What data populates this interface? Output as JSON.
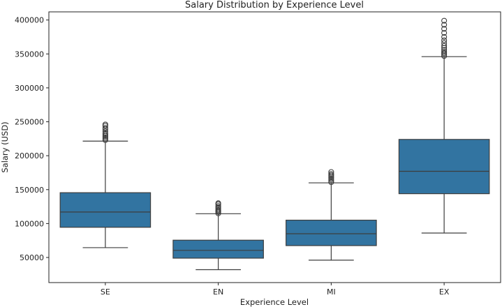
{
  "chart_data": {
    "type": "box",
    "title": "Salary Distribution by Experience Level",
    "xlabel": "Experience Level",
    "ylabel": "Salary (USD)",
    "ylim": [
      13000,
      412000
    ],
    "yticks": [
      50000,
      100000,
      150000,
      200000,
      250000,
      300000,
      350000,
      400000
    ],
    "grid": false,
    "box_color": "#3274a1",
    "line_color": "#3d3d3d",
    "categories": [
      "SE",
      "EN",
      "MI",
      "EX"
    ],
    "boxes": [
      {
        "label": "SE",
        "whisker_low": 64500,
        "q1": 94500,
        "median": 117000,
        "q3": 145500,
        "whisker_high": 221500,
        "outliers": [
          223000,
          225000,
          227000,
          229000,
          231000,
          233000,
          236000,
          239000,
          241000,
          244000,
          246000
        ]
      },
      {
        "label": "EN",
        "whisker_low": 32000,
        "q1": 49000,
        "median": 60500,
        "q3": 75500,
        "whisker_high": 114500,
        "outliers": [
          115000,
          117000,
          118500,
          120000,
          122000,
          124000,
          126000,
          128500,
          130000
        ]
      },
      {
        "label": "MI",
        "whisker_low": 46000,
        "q1": 67500,
        "median": 85000,
        "q3": 105000,
        "whisker_high": 160000,
        "outliers": [
          161000,
          163000,
          165000,
          167000,
          169000,
          171000,
          173000,
          176000
        ]
      },
      {
        "label": "EX",
        "whisker_low": 86000,
        "q1": 144000,
        "median": 177000,
        "q3": 224000,
        "whisker_high": 346000,
        "outliers": [
          347000,
          349000,
          351000,
          353000,
          356000,
          359000,
          362000,
          366000,
          370000,
          375000,
          381000,
          387000,
          393000,
          399000
        ]
      }
    ]
  }
}
